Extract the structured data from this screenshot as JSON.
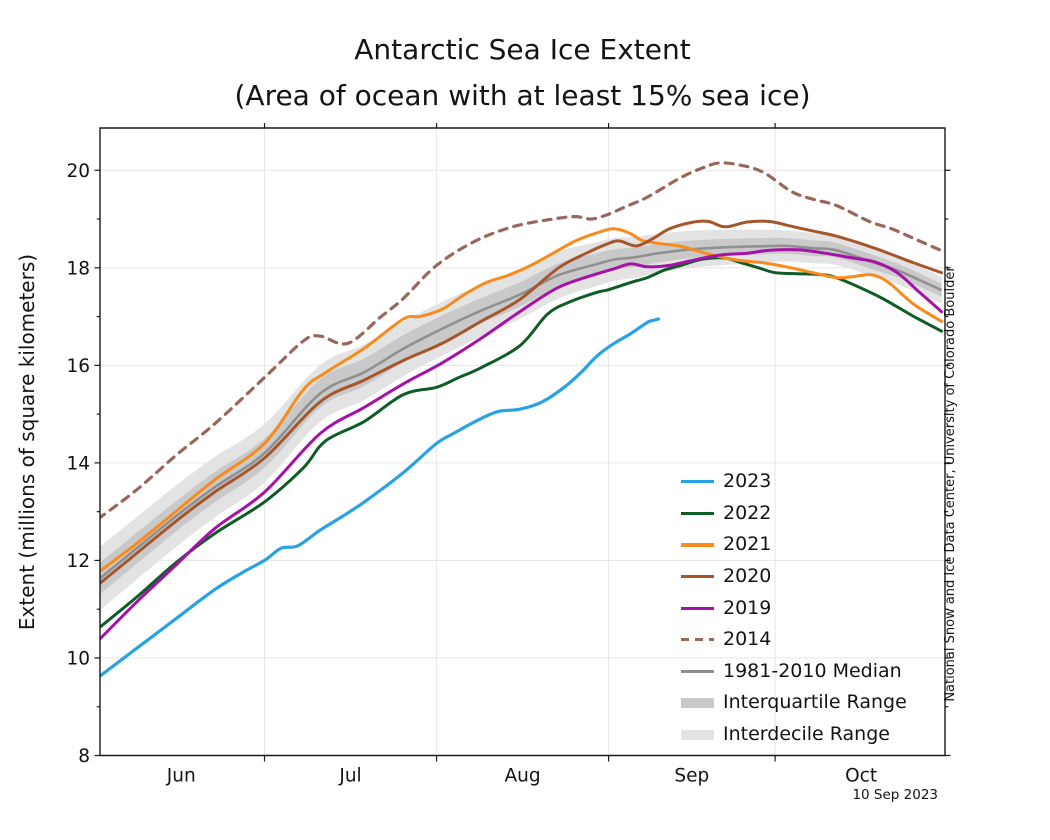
{
  "figure": {
    "title": "Antarctic Sea Ice Extent",
    "subtitle": "(Area of ocean with at least 15% sea ice)",
    "ylabel": "Extent (millions of square kilometers)",
    "credit": "National Snow and Ice Data Center, University of Colorado Boulder",
    "date_label": "10 Sep 2023"
  },
  "legend": {
    "position": "inside lower right",
    "items": [
      {
        "label": "2023",
        "color": "#29A2E3",
        "swatch": "line"
      },
      {
        "label": "2022",
        "color": "#0E5C26",
        "swatch": "line"
      },
      {
        "label": "2021",
        "color": "#F78B1E",
        "swatch": "line"
      },
      {
        "label": "2020",
        "color": "#A5562B",
        "swatch": "line"
      },
      {
        "label": "2019",
        "color": "#A512A8",
        "swatch": "line"
      },
      {
        "label": "2014",
        "color": "#99675C",
        "swatch": "dashed"
      },
      {
        "label": "1981-2010 Median",
        "color": "#909090",
        "swatch": "line"
      },
      {
        "label": "Interquartile Range",
        "color": "#C9C9C9",
        "swatch": "band"
      },
      {
        "label": "Interdecile Range",
        "color": "#E3E3E3",
        "swatch": "band"
      }
    ]
  },
  "chart_data": {
    "type": "line",
    "title": "Antarctic Sea Ice Extent",
    "subtitle": "(Area of ocean with at least 15% sea ice)",
    "xlabel": "",
    "ylabel": "Extent (millions of square kilometers)",
    "x_unit": "days since Jun 1",
    "x_domain_days": [
      0,
      153
    ],
    "ylim": [
      8,
      20.9
    ],
    "yticks_major": [
      8,
      10,
      12,
      14,
      16,
      18,
      20
    ],
    "grid": true,
    "month_labels": [
      {
        "label": "Jun",
        "mid_day": 15
      },
      {
        "label": "Jul",
        "mid_day": 45.5
      },
      {
        "label": "Aug",
        "mid_day": 76.5
      },
      {
        "label": "Sep",
        "mid_day": 107
      },
      {
        "label": "Oct",
        "mid_day": 137.5
      }
    ],
    "month_boundary_ticks_days": [
      30,
      61,
      92,
      122
    ],
    "series": [
      {
        "name": "2023",
        "color": "#29A2E3",
        "dash": "solid",
        "width": 3.2,
        "days": [
          0,
          7,
          14,
          21,
          26,
          30,
          33,
          36,
          40,
          44,
          48,
          55,
          61,
          64,
          68,
          72,
          76,
          80,
          84,
          87,
          90,
          93,
          96,
          99,
          100,
          101
        ],
        "values": [
          9.6,
          10.2,
          10.8,
          11.4,
          11.75,
          12.0,
          12.25,
          12.3,
          12.62,
          12.9,
          13.2,
          13.8,
          14.4,
          14.6,
          14.85,
          15.05,
          15.1,
          15.25,
          15.55,
          15.85,
          16.2,
          16.45,
          16.65,
          16.88,
          16.92,
          16.95
        ]
      },
      {
        "name": "2022",
        "color": "#0E5C26",
        "dash": "solid",
        "width": 3,
        "days": [
          0,
          7,
          14,
          21,
          30,
          37,
          41,
          48,
          55,
          61,
          65,
          69,
          76,
          81,
          85,
          90,
          92,
          96,
          99,
          102,
          105,
          109,
          113,
          116,
          119,
          122,
          126,
          130,
          133,
          140,
          144,
          147,
          152
        ],
        "values": [
          10.6,
          11.25,
          11.95,
          12.55,
          13.2,
          13.9,
          14.45,
          14.85,
          15.4,
          15.55,
          15.75,
          15.95,
          16.4,
          17.05,
          17.3,
          17.5,
          17.55,
          17.7,
          17.8,
          17.95,
          18.05,
          18.18,
          18.2,
          18.1,
          18.0,
          17.9,
          17.88,
          17.86,
          17.8,
          17.45,
          17.2,
          17.0,
          16.7
        ]
      },
      {
        "name": "2021",
        "color": "#F78B1E",
        "dash": "solid",
        "width": 3,
        "days": [
          0,
          7,
          14,
          21,
          30,
          37,
          41,
          48,
          55,
          58,
          62,
          66,
          70,
          74,
          78,
          82,
          86,
          90,
          93,
          96,
          98,
          101,
          105,
          110,
          115,
          120,
          124,
          128,
          133,
          136,
          139,
          141,
          143,
          147,
          152
        ],
        "values": [
          11.75,
          12.35,
          13.0,
          13.65,
          14.4,
          15.5,
          15.85,
          16.35,
          16.95,
          17.0,
          17.15,
          17.45,
          17.7,
          17.85,
          18.05,
          18.3,
          18.55,
          18.72,
          18.8,
          18.7,
          18.56,
          18.5,
          18.44,
          18.28,
          18.16,
          18.1,
          18.02,
          17.92,
          17.8,
          17.82,
          17.86,
          17.8,
          17.65,
          17.25,
          16.9
        ]
      },
      {
        "name": "2020",
        "color": "#A5562B",
        "dash": "solid",
        "width": 3,
        "days": [
          0,
          7,
          14,
          21,
          30,
          40,
          48,
          55,
          62,
          69,
          76,
          83,
          88,
          92,
          94,
          97,
          100,
          103,
          107,
          110,
          113,
          117,
          121,
          125,
          129,
          133,
          140,
          147,
          152
        ],
        "values": [
          11.5,
          12.15,
          12.8,
          13.4,
          14.1,
          15.25,
          15.7,
          16.1,
          16.45,
          16.9,
          17.35,
          18.0,
          18.3,
          18.5,
          18.55,
          18.45,
          18.6,
          18.8,
          18.93,
          18.95,
          18.84,
          18.94,
          18.95,
          18.85,
          18.75,
          18.65,
          18.4,
          18.1,
          17.9
        ]
      },
      {
        "name": "2019",
        "color": "#A512A8",
        "dash": "solid",
        "width": 3,
        "days": [
          0,
          7,
          14,
          21,
          30,
          40,
          48,
          55,
          62,
          69,
          76,
          83,
          90,
          93,
          96,
          99,
          103,
          107,
          112,
          117,
          121,
          126,
          131,
          136,
          140,
          144,
          148,
          152
        ],
        "values": [
          10.35,
          11.15,
          11.9,
          12.65,
          13.4,
          14.6,
          15.14,
          15.62,
          16.05,
          16.55,
          17.1,
          17.6,
          17.88,
          17.98,
          18.08,
          18.02,
          18.05,
          18.15,
          18.26,
          18.3,
          18.36,
          18.37,
          18.3,
          18.2,
          18.12,
          17.9,
          17.5,
          17.1
        ]
      },
      {
        "name": "2014",
        "color": "#99675C",
        "dash": "dashed",
        "width": 3.2,
        "days": [
          0,
          7,
          14,
          21,
          30,
          37,
          40,
          45,
          51,
          55,
          61,
          68,
          75,
          82,
          86,
          89,
          92,
          95,
          99,
          105,
          109,
          112,
          116,
          120,
          125,
          129,
          133,
          139,
          143,
          147,
          152
        ],
        "values": [
          12.85,
          13.45,
          14.15,
          14.8,
          15.75,
          16.5,
          16.6,
          16.45,
          17.0,
          17.37,
          18.05,
          18.55,
          18.85,
          19.0,
          19.05,
          19.0,
          19.1,
          19.25,
          19.45,
          19.85,
          20.05,
          20.15,
          20.1,
          19.95,
          19.56,
          19.4,
          19.28,
          18.95,
          18.8,
          18.6,
          18.35
        ]
      }
    ],
    "median_1981_2010": {
      "name": "1981-2010 Median",
      "color": "#909090",
      "width": 2.6,
      "days": [
        0,
        7,
        14,
        21,
        30,
        40,
        48,
        55,
        62,
        69,
        76,
        83,
        90,
        93,
        97,
        101,
        107,
        113,
        119,
        124,
        129,
        133,
        140,
        144,
        148,
        152
      ],
      "values": [
        11.6,
        12.25,
        12.9,
        13.5,
        14.2,
        15.42,
        15.86,
        16.34,
        16.75,
        17.12,
        17.45,
        17.85,
        18.08,
        18.17,
        18.22,
        18.3,
        18.38,
        18.42,
        18.44,
        18.45,
        18.4,
        18.36,
        18.1,
        17.95,
        17.75,
        17.54
      ]
    },
    "bands": {
      "interquartile": {
        "color": "#C9C9C9",
        "halfwidths": [
          0.32,
          0.32,
          0.31,
          0.31,
          0.3,
          0.29,
          0.28,
          0.28,
          0.27,
          0.26,
          0.25,
          0.24,
          0.22,
          0.21,
          0.2,
          0.19,
          0.18,
          0.17,
          0.17,
          0.16,
          0.16,
          0.15,
          0.15,
          0.14,
          0.14,
          0.13
        ]
      },
      "interdecile": {
        "color": "#E3E3E3",
        "halfwidths": [
          0.65,
          0.64,
          0.63,
          0.62,
          0.6,
          0.58,
          0.57,
          0.56,
          0.55,
          0.53,
          0.5,
          0.48,
          0.45,
          0.44,
          0.42,
          0.4,
          0.38,
          0.36,
          0.34,
          0.32,
          0.31,
          0.3,
          0.29,
          0.28,
          0.28,
          0.27
        ]
      }
    }
  }
}
